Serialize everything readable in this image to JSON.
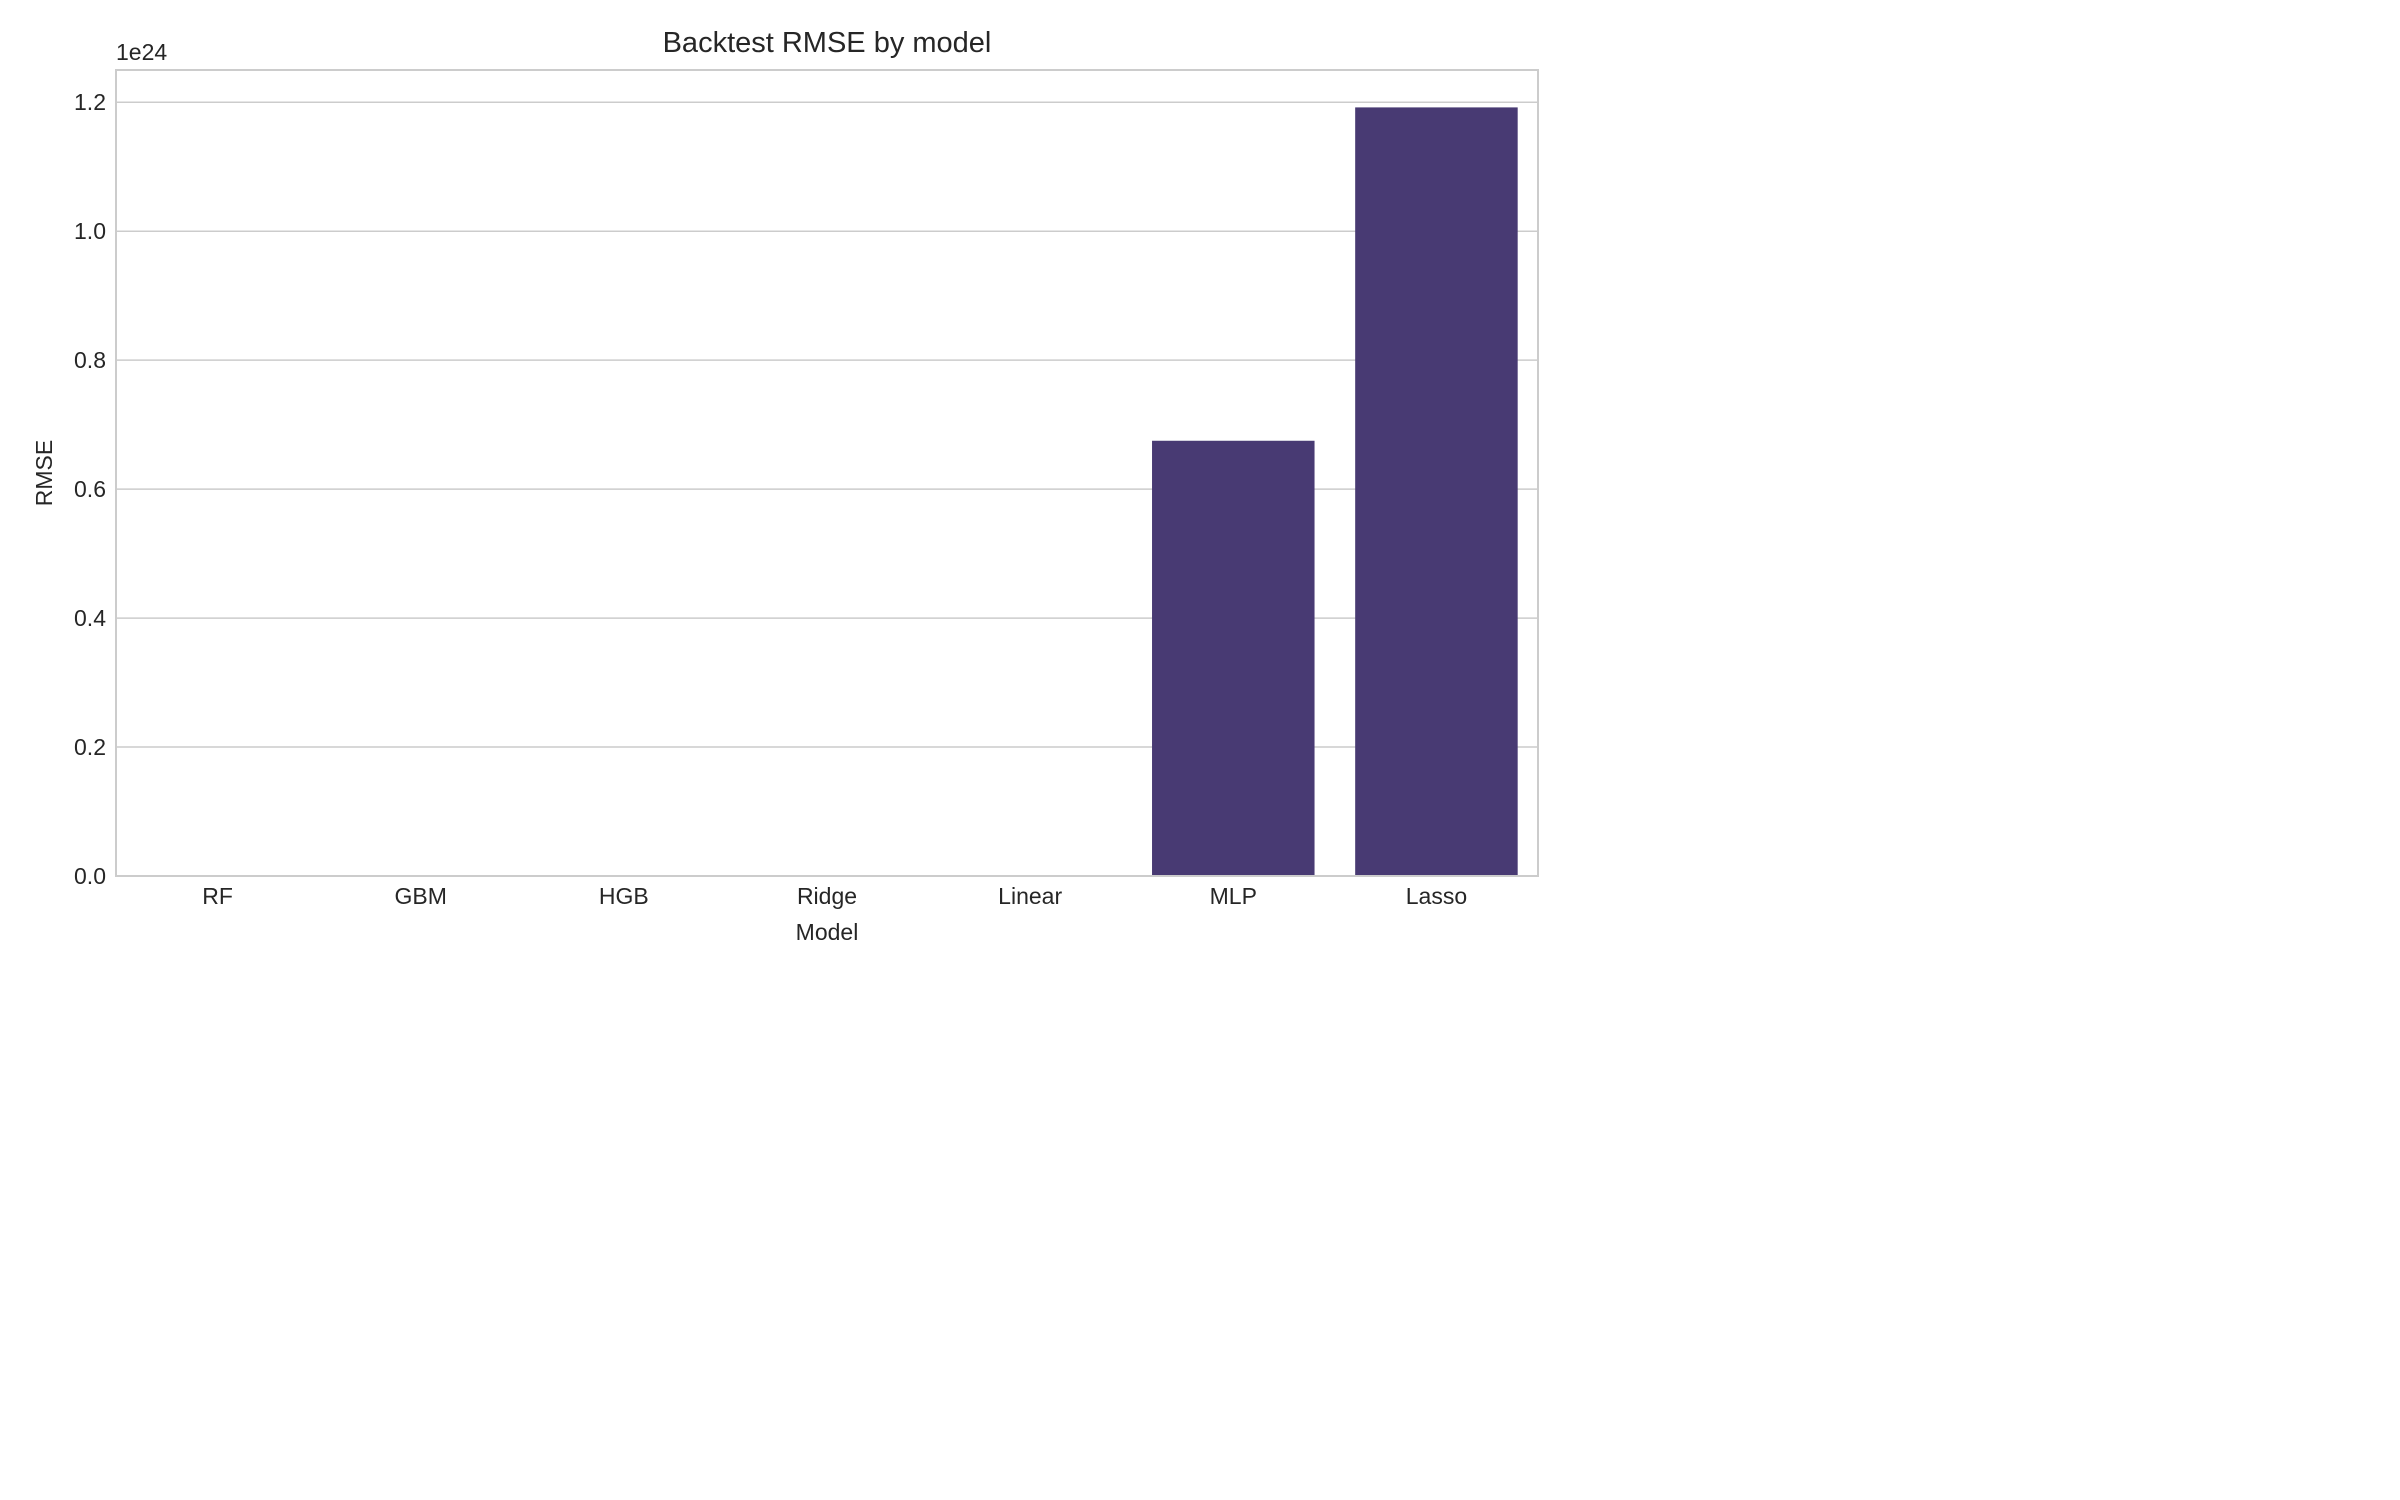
{
  "chart_data": {
    "type": "bar",
    "title": "Backtest RMSE by model",
    "xlabel": "Model",
    "ylabel": "RMSE",
    "offset_text": "1e24",
    "scale": 1e+24,
    "categories": [
      "RF",
      "GBM",
      "HGB",
      "Ridge",
      "Linear",
      "MLP",
      "Lasso"
    ],
    "values": [
      0,
      0,
      0,
      0,
      0,
      6.75e+23,
      1.192e+24
    ],
    "ylim": [
      0,
      1.25e+24
    ],
    "yticks": [
      0,
      2e+23,
      4e+23,
      6e+23,
      8e+23,
      1e+24,
      1.2e+24
    ],
    "ytick_labels": [
      "0.0",
      "0.2",
      "0.4",
      "0.6",
      "0.8",
      "1.0",
      "1.2"
    ],
    "grid": true,
    "bar_color": "#483a73"
  }
}
